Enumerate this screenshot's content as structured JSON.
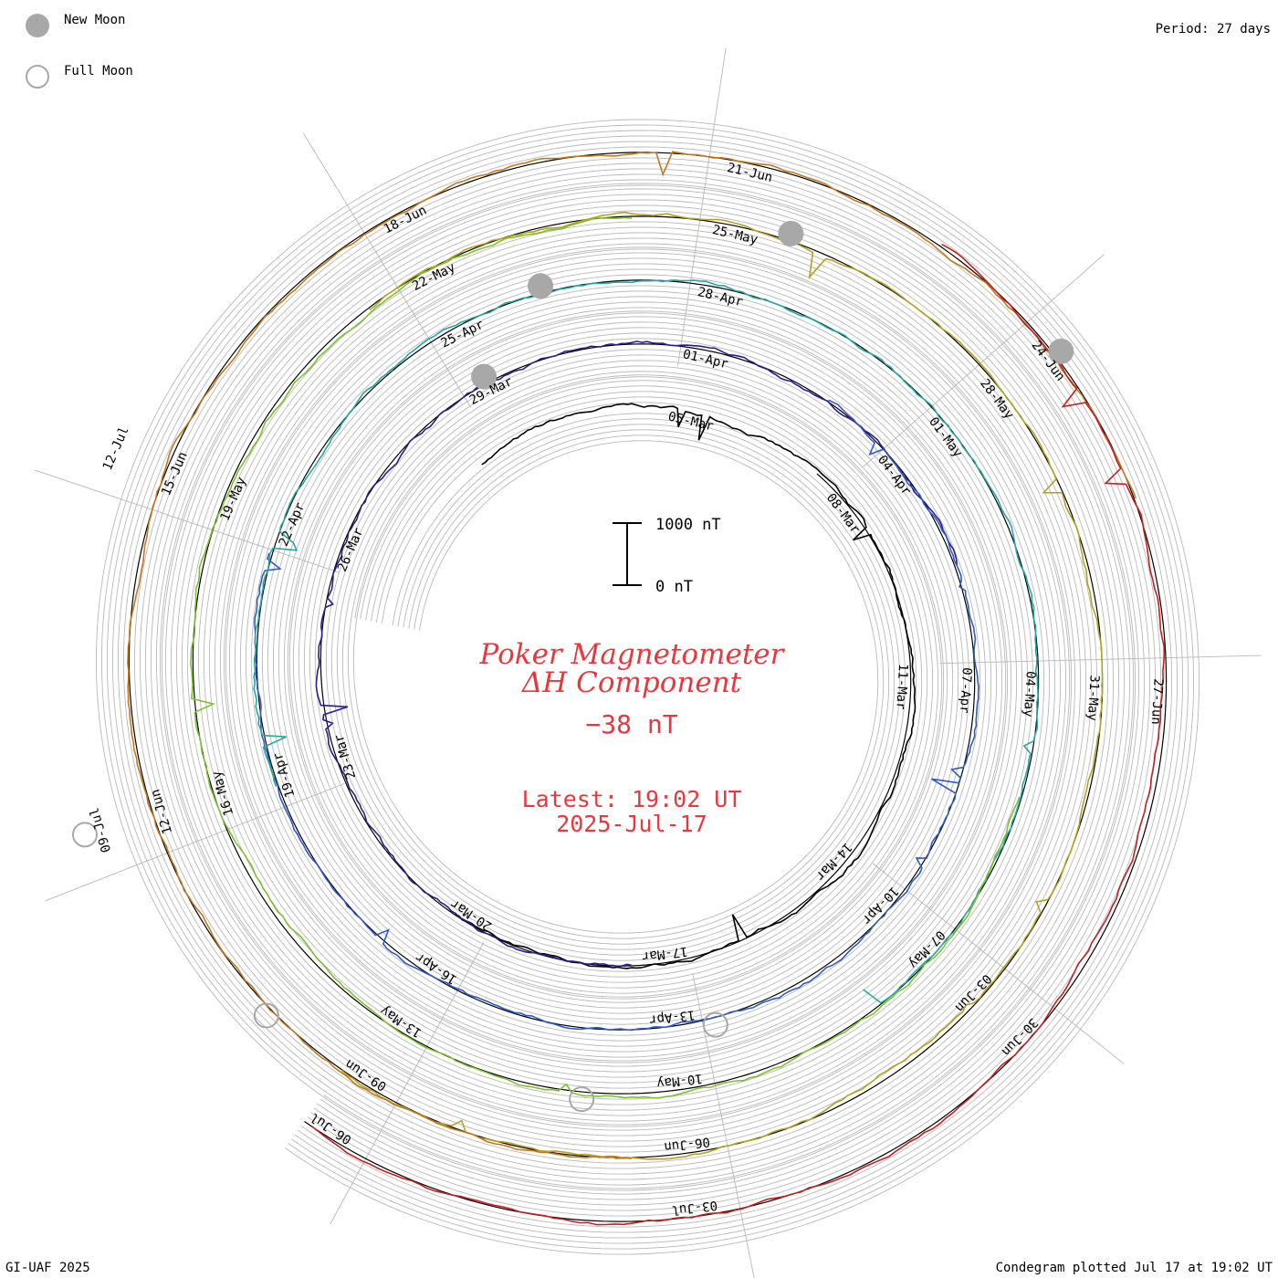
{
  "header": {
    "period": "Period: 27 days",
    "new_moon_label": "New Moon",
    "full_moon_label": "Full Moon"
  },
  "footer": {
    "credit": "GI-UAF 2025",
    "plotted": "Condegram plotted Jul 17 at 19:02 UT"
  },
  "colors": {
    "title": "#e8383d",
    "new_moon": "#a8a8a8",
    "full_moon_ring": "#a8a8a8",
    "grid": "#b8b8b8",
    "baseline": "#000000",
    "turns": [
      "#000000",
      "#2b1d8f",
      "#2f5bc4",
      "#27a6a6",
      "#7cc230",
      "#b5a21e",
      "#c4781d",
      "#c42020"
    ]
  },
  "chart_data": {
    "type": "condegram (spiral line)",
    "title": "Poker Magnetometer",
    "subtitle": "ΔH Component",
    "current_value": "−38 nT",
    "latest_time": "Latest: 19:02 UT",
    "latest_date": "2025-Jul-17",
    "scale_bar": {
      "top_label": "1000 nT",
      "bottom_label": "0 nT",
      "span_nT": 1000
    },
    "period_days": 27,
    "date_labels": [
      [
        "05-Mar",
        "08-Mar",
        "11-Mar",
        "14-Mar",
        "17-Mar",
        "20-Mar",
        "23-Mar",
        "26-Mar",
        "29-Mar"
      ],
      [
        "01-Apr",
        "04-Apr",
        "07-Apr",
        "10-Apr",
        "13-Apr",
        "16-Apr",
        "19-Apr",
        "22-Apr",
        "25-Apr"
      ],
      [
        "28-Apr",
        "01-May",
        "04-May",
        "07-May",
        "10-May",
        "13-May",
        "16-May",
        "19-May",
        "22-May"
      ],
      [
        "25-May",
        "28-May",
        "31-May",
        "03-Jun",
        "06-Jun",
        "09-Jun",
        "12-Jun",
        "15-Jun",
        "18-Jun"
      ],
      [
        "21-Jun",
        "24-Jun",
        "27-Jun",
        "30-Jun",
        "03-Jul",
        "06-Jul",
        "09-Jul",
        "12-Jul"
      ]
    ],
    "new_moons": [
      "29-Mar",
      "27-Apr",
      "27-May",
      "25-Jun"
    ],
    "full_moons": [
      "13-Apr",
      "12-May",
      "11-Jun",
      "10-Jul"
    ]
  }
}
